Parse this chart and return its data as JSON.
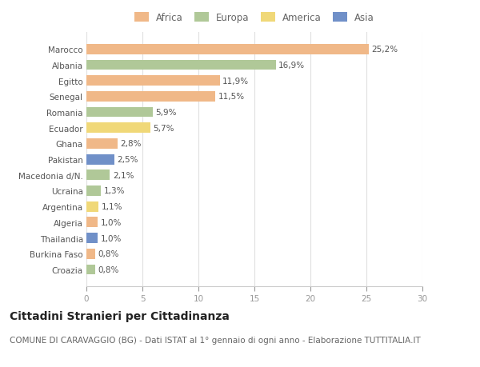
{
  "countries": [
    "Marocco",
    "Albania",
    "Egitto",
    "Senegal",
    "Romania",
    "Ecuador",
    "Ghana",
    "Pakistan",
    "Macedonia d/N.",
    "Ucraina",
    "Argentina",
    "Algeria",
    "Thailandia",
    "Burkina Faso",
    "Croazia"
  ],
  "values": [
    25.2,
    16.9,
    11.9,
    11.5,
    5.9,
    5.7,
    2.8,
    2.5,
    2.1,
    1.3,
    1.1,
    1.0,
    1.0,
    0.8,
    0.8
  ],
  "labels": [
    "25,2%",
    "16,9%",
    "11,9%",
    "11,5%",
    "5,9%",
    "5,7%",
    "2,8%",
    "2,5%",
    "2,1%",
    "1,3%",
    "1,1%",
    "1,0%",
    "1,0%",
    "0,8%",
    "0,8%"
  ],
  "continents": [
    "Africa",
    "Europa",
    "Africa",
    "Africa",
    "Europa",
    "America",
    "Africa",
    "Asia",
    "Europa",
    "Europa",
    "America",
    "Africa",
    "Asia",
    "Africa",
    "Europa"
  ],
  "colors": {
    "Africa": "#F0B888",
    "Europa": "#B0C898",
    "America": "#F0D878",
    "Asia": "#7090C8"
  },
  "title": "Cittadini Stranieri per Cittadinanza",
  "subtitle": "COMUNE DI CARAVAGGIO (BG) - Dati ISTAT al 1° gennaio di ogni anno - Elaborazione TUTTITALIA.IT",
  "xlim": [
    0,
    30
  ],
  "xticks": [
    0,
    5,
    10,
    15,
    20,
    25,
    30
  ],
  "background_color": "#ffffff",
  "bar_height": 0.65,
  "title_fontsize": 10,
  "subtitle_fontsize": 7.5,
  "label_fontsize": 7.5,
  "tick_fontsize": 7.5,
  "legend_fontsize": 8.5
}
